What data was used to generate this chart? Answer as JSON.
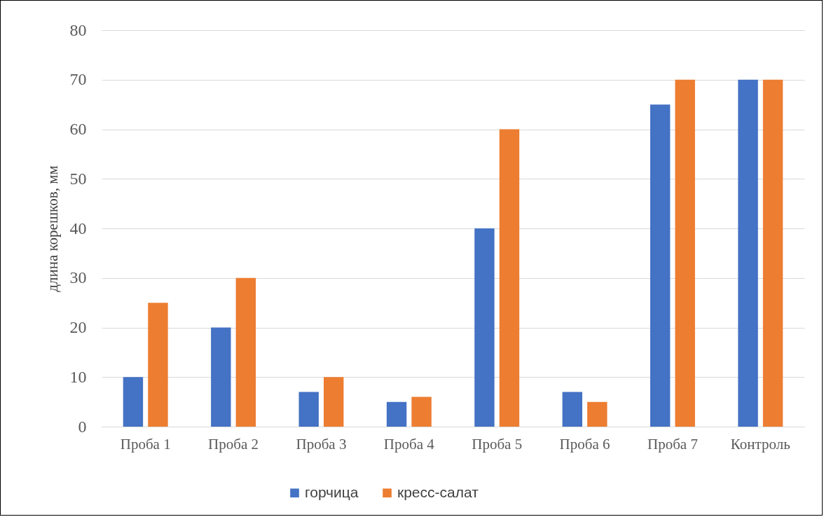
{
  "chart_data": {
    "type": "bar",
    "ylabel": "длина корешков, мм",
    "categories": [
      "Проба 1",
      "Проба 2",
      "Проба 3",
      "Проба 4",
      "Проба 5",
      "Проба 6",
      "Проба 7",
      "Контроль"
    ],
    "series": [
      {
        "name": "горчица",
        "color": "#4472c4",
        "values": [
          10,
          20,
          7,
          5,
          40,
          7,
          65,
          70
        ]
      },
      {
        "name": "кресс-салат",
        "color": "#ed7d31",
        "values": [
          25,
          30,
          10,
          6,
          60,
          5,
          70,
          70
        ]
      }
    ],
    "ylim": [
      0,
      80
    ],
    "yticks": [
      0,
      10,
      20,
      30,
      40,
      50,
      60,
      70,
      80
    ],
    "grid": "y",
    "legend": "bottom"
  }
}
